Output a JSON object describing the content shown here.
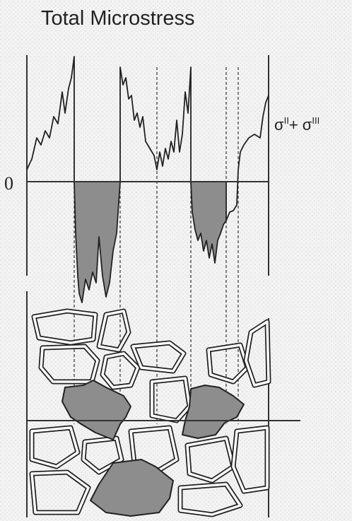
{
  "title": "Total Microstress",
  "zero_label": "0",
  "curve_label": [
    "σ",
    "II",
    "+ σ",
    "III"
  ]
}
